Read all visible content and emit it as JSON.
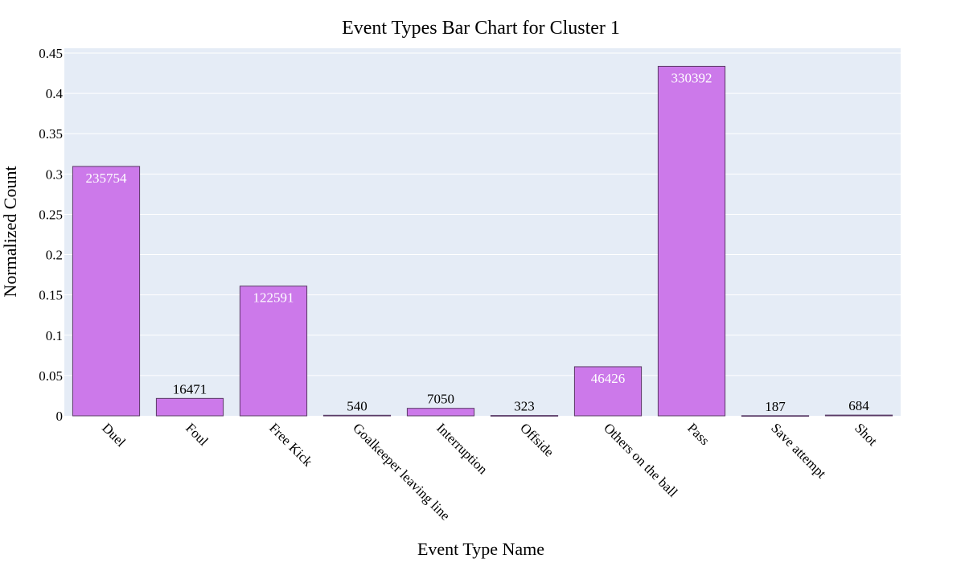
{
  "chart_data": {
    "type": "bar",
    "title": "Event Types Bar Chart for Cluster 1",
    "xlabel": "Event Type Name",
    "ylabel": "Normalized Count",
    "categories": [
      "Duel",
      "Foul",
      "Free Kick",
      "Goalkeeper leaving line",
      "Interruption",
      "Offside",
      "Others on the ball",
      "Pass",
      "Save attempt",
      "Shot"
    ],
    "values": [
      0.3094,
      0.0216,
      0.1609,
      0.0007,
      0.0093,
      0.0004,
      0.0609,
      0.4336,
      0.0002,
      0.0009
    ],
    "data_labels": [
      "235754",
      "16471",
      "122591",
      "540",
      "7050",
      "323",
      "46426",
      "330392",
      "187",
      "684"
    ],
    "ylim": [
      0,
      0.456
    ],
    "yticks": [
      0,
      0.05,
      0.1,
      0.15,
      0.2,
      0.25,
      0.3,
      0.35,
      0.4,
      0.45
    ],
    "ytick_labels": [
      "0",
      "0.05",
      "0.1",
      "0.15",
      "0.2",
      "0.25",
      "0.3",
      "0.35",
      "0.4",
      "0.45"
    ],
    "grid": true,
    "colors": {
      "bar": "#cc79ea",
      "bar_edge": "#5a3a66",
      "plot_bg": "#e5ecf6",
      "grid": "#ffffff",
      "label_inside": "#ffffff",
      "label_outside": "#000000"
    }
  }
}
